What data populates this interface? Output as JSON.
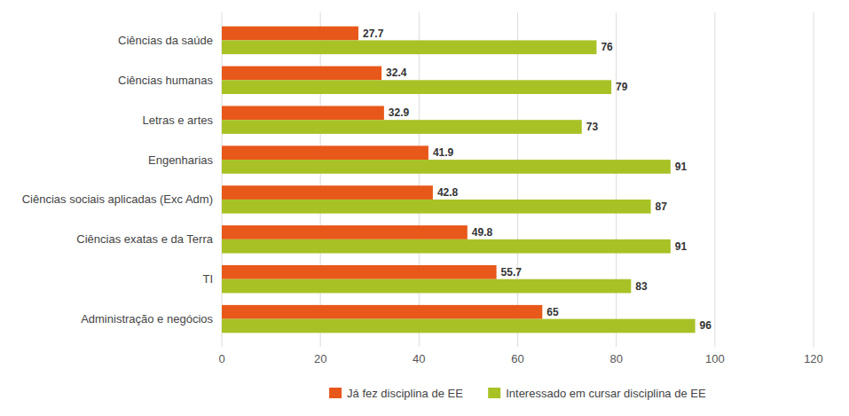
{
  "chart_data": {
    "type": "bar",
    "orientation": "horizontal",
    "categories": [
      "Administração e negócios",
      "TI",
      "Ciências exatas e da Terra",
      "Ciências sociais aplicadas (Exc Adm)",
      "Engenharias",
      "Letras e artes",
      "Ciências humanas",
      "Ciências da saúde"
    ],
    "series": [
      {
        "name": "Já fez disciplina de EE",
        "color": "#E8581A",
        "values": [
          65,
          55.7,
          49.8,
          42.8,
          41.9,
          32.9,
          32.4,
          27.7
        ]
      },
      {
        "name": "Interessado em cursar disciplina de EE",
        "color": "#A8C226",
        "values": [
          96,
          83,
          91,
          87,
          91,
          73,
          79,
          76
        ]
      }
    ],
    "xlim": [
      0,
      120
    ],
    "xticks": [
      0,
      20,
      40,
      60,
      80,
      100,
      120
    ],
    "grid": true,
    "data_labels": true,
    "legend": "bottom"
  }
}
